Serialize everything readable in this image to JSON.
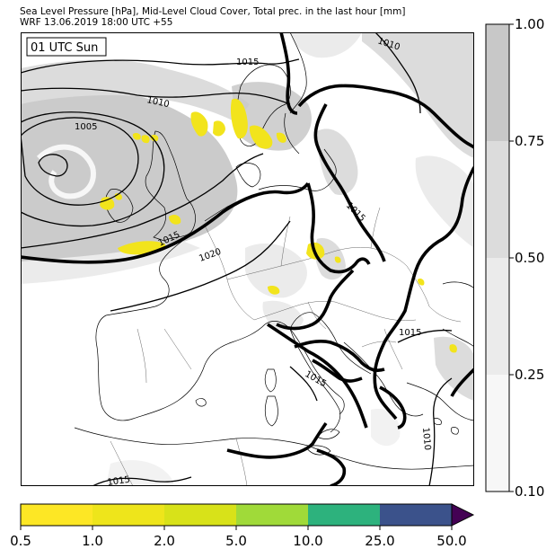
{
  "header": {
    "line1": "Sea Level Pressure [hPa], Mid-Level Cloud Cover, Total prec. in the last hour [mm]",
    "line2": "WRF 13.06.2019 18:00 UTC +55"
  },
  "map": {
    "time_label": "01 UTC Sun",
    "isobar_labels": [
      {
        "text": "1015"
      },
      {
        "text": "1010"
      },
      {
        "text": "1010"
      },
      {
        "text": "1005"
      },
      {
        "text": "1015"
      },
      {
        "text": "1015"
      },
      {
        "text": "1020"
      },
      {
        "text": "1015"
      },
      {
        "text": "1015"
      },
      {
        "text": "1010"
      },
      {
        "text": "1015"
      }
    ]
  },
  "cloud_colorbar": {
    "ticks": [
      "1.00",
      "0.75",
      "0.50",
      "0.25",
      "0.10"
    ],
    "colors": [
      "#c8c8c8",
      "#dcdcdc",
      "#ebebeb",
      "#f7f7f7"
    ]
  },
  "precip_colorbar": {
    "ticks": [
      "0.5",
      "1.0",
      "2.0",
      "5.0",
      "10.0",
      "25.0",
      "50.0"
    ],
    "colors": [
      "#fde725",
      "#eee51b",
      "#d8e219",
      "#a0da39",
      "#2db27d",
      "#3b528b",
      "#440154"
    ]
  }
}
